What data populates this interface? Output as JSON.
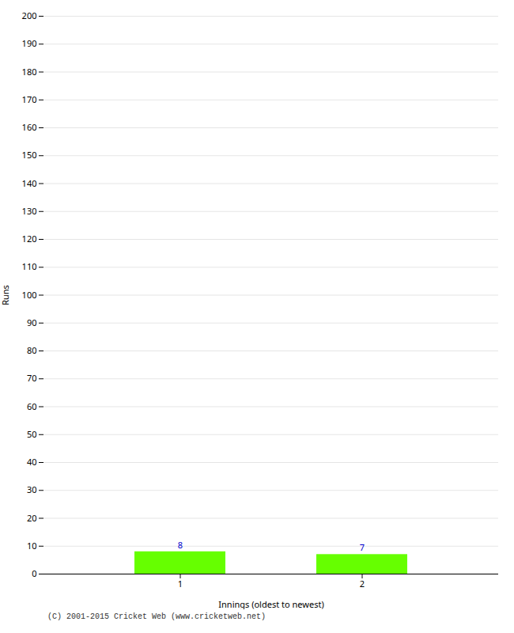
{
  "chart_data": {
    "type": "bar",
    "categories": [
      1,
      2
    ],
    "values": [
      8,
      7
    ],
    "color": "#66ff00",
    "xlabel": "Innings (oldest to newest)",
    "ylabel": "Runs",
    "ylim": [
      0,
      200
    ],
    "yticks": [
      0,
      10,
      20,
      30,
      40,
      50,
      60,
      70,
      80,
      90,
      100,
      110,
      120,
      130,
      140,
      150,
      160,
      170,
      180,
      190,
      200
    ],
    "grid": true,
    "data_labels": true,
    "caption": "(C) 2001-2015 Cricket Web (www.cricketweb.net)"
  }
}
